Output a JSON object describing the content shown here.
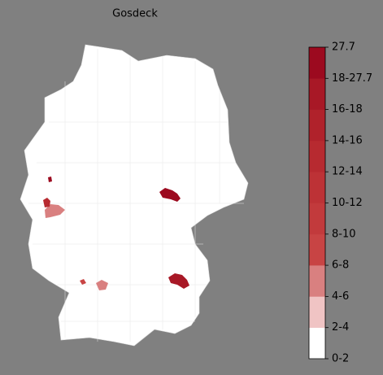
{
  "map": {
    "title": "Gosdeck",
    "legend": {
      "labels": [
        "0-2",
        "2-4",
        "4-6",
        "6-8",
        "8-10",
        "10-12",
        "12-14",
        "14-16",
        "16-18",
        "18-27.7",
        "27.7"
      ],
      "colors": [
        "#ffffff",
        "#f0c4c4",
        "#d98080",
        "#c84444",
        "#c23a3c",
        "#bd3236",
        "#b72a30",
        "#b0222b",
        "#a81826",
        "#9c0a1f"
      ]
    }
  }
}
